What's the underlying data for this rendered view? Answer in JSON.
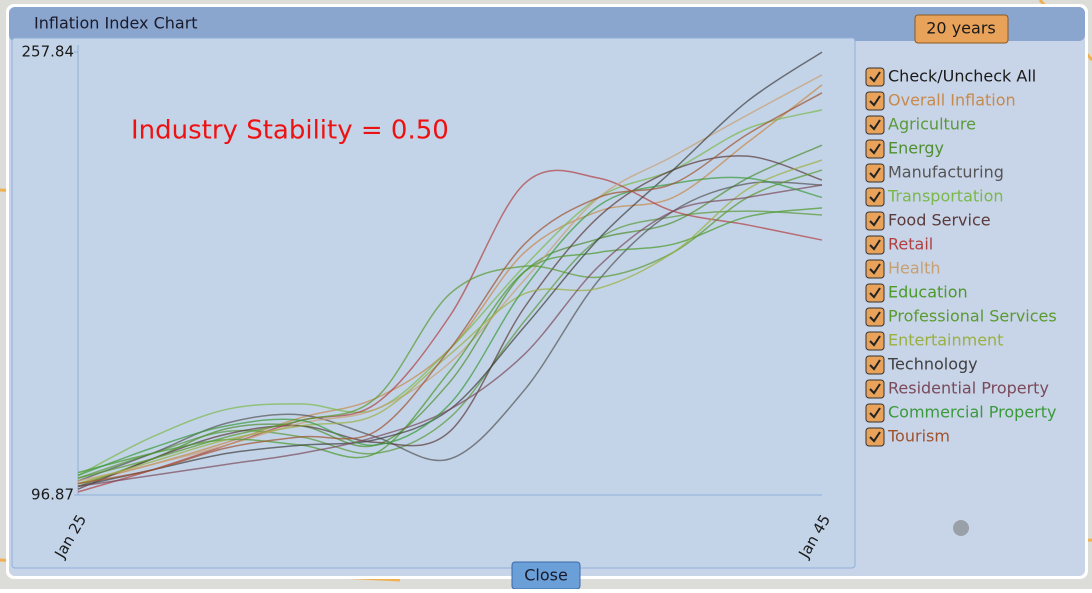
{
  "window_title": "Inflation Index Chart",
  "range_button": "20 years",
  "check_all": "Check/Uncheck All",
  "close_button": "Close",
  "chart_data": {
    "type": "line",
    "annotation": "Industry Stability = 0.50",
    "categories": [
      "Jan 25",
      null,
      null,
      null,
      null,
      null,
      null,
      null,
      null,
      null,
      "Jan 45"
    ],
    "ylim": [
      96.87,
      257.84
    ],
    "yticks": [
      96.87,
      257.84
    ],
    "series": [
      {
        "name": "Overall Inflation",
        "color": "#c8894a",
        "values": [
          101,
          108,
          116,
          125,
          132,
          150,
          185,
          200,
          205,
          225,
          245.9
        ]
      },
      {
        "name": "Agriculture",
        "color": "#5a9a3a",
        "values": [
          103,
          112,
          120,
          118,
          112,
          125,
          160,
          190,
          198,
          200,
          198.6
        ]
      },
      {
        "name": "Energy",
        "color": "#4f8f30",
        "values": [
          100,
          110,
          121,
          122,
          115,
          138,
          178,
          190,
          196,
          212,
          224
        ]
      },
      {
        "name": "Manufacturing",
        "color": "#555555",
        "values": [
          102,
          112,
          123,
          126,
          118,
          110,
          135,
          175,
          200,
          210,
          209.5
        ]
      },
      {
        "name": "Transportation",
        "color": "#7ab84a",
        "values": [
          104,
          118,
          128,
          130,
          128,
          150,
          180,
          205,
          215,
          230,
          236.8
        ]
      },
      {
        "name": "Food Service",
        "color": "#5a3a3a",
        "values": [
          99,
          110,
          119,
          122,
          116,
          120,
          165,
          198,
          215,
          220,
          211.3
        ]
      },
      {
        "name": "Retail",
        "color": "#b04040",
        "values": [
          98,
          106,
          115,
          124,
          130,
          162,
          210,
          212,
          200,
          195,
          189.5
        ]
      },
      {
        "name": "Health",
        "color": "#c8a070",
        "values": [
          102,
          108,
          115,
          123,
          128,
          145,
          175,
          205,
          220,
          235,
          249.5
        ]
      },
      {
        "name": "Education",
        "color": "#4a9a2a",
        "values": [
          105,
          112,
          117,
          115,
          112,
          142,
          178,
          185,
          188,
          198,
          201.2
        ]
      },
      {
        "name": "Professional Services",
        "color": "#5a9a30",
        "values": [
          103,
          110,
          118,
          124,
          132,
          170,
          180,
          176,
          185,
          205,
          215
        ]
      },
      {
        "name": "Entertainment",
        "color": "#9ab040",
        "values": [
          101,
          109,
          117,
          122,
          126,
          148,
          170,
          172,
          185,
          208,
          218.6
        ]
      },
      {
        "name": "Technology",
        "color": "#404040",
        "values": [
          100,
          106,
          112,
          115,
          117,
          128,
          158,
          190,
          215,
          240,
          257.8
        ]
      },
      {
        "name": "Residential Property",
        "color": "#7a4a5a",
        "values": [
          100,
          104,
          108,
          112,
          118,
          128,
          148,
          180,
          200,
          205,
          209.5
        ]
      },
      {
        "name": "Commercial Property",
        "color": "#3a9a3a",
        "values": [
          104,
          114,
          122,
          124,
          115,
          130,
          172,
          202,
          210,
          212,
          205
        ]
      },
      {
        "name": "Tourism",
        "color": "#a0522d",
        "values": [
          101,
          106,
          114,
          118,
          120,
          150,
          188,
          205,
          210,
          228,
          243
        ]
      }
    ]
  }
}
